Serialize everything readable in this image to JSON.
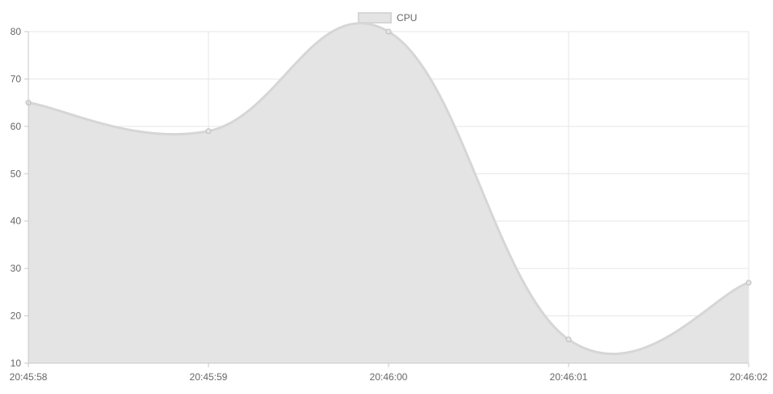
{
  "chart_data": {
    "type": "area",
    "categories": [
      "20:45:58",
      "20:45:59",
      "20:46:00",
      "20:46:01",
      "20:46:02"
    ],
    "series": [
      {
        "name": "CPU",
        "values": [
          65,
          59,
          80,
          15,
          27
        ]
      }
    ],
    "ylim": [
      10,
      80
    ],
    "yticks": [
      10,
      20,
      30,
      40,
      50,
      60,
      70,
      80
    ],
    "grid": true,
    "legend": "top-center",
    "colors": {
      "fill": "#e4e4e4",
      "line": "#d6d6d6",
      "point": "#bdbdbd",
      "grid": "#e6e6e6",
      "axis": "#c8c8c8"
    }
  }
}
